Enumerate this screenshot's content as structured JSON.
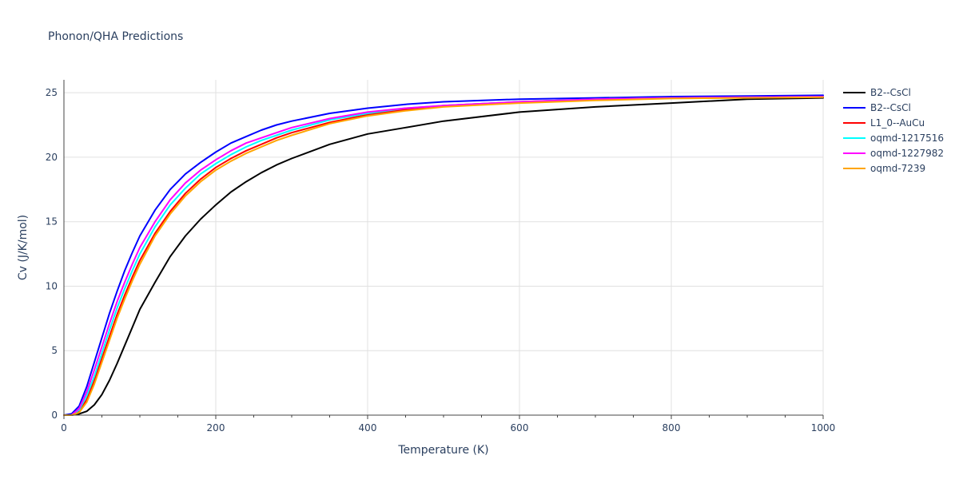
{
  "chart_data": {
    "type": "line",
    "title": "Phonon/QHA Predictions",
    "xlabel": "Temperature (K)",
    "ylabel": "Cv (J/K/mol)",
    "xlim": [
      0,
      1000
    ],
    "ylim": [
      0,
      26
    ],
    "xticks": [
      0,
      200,
      400,
      600,
      800,
      1000
    ],
    "yticks": [
      0,
      5,
      10,
      15,
      20,
      25
    ],
    "grid": true,
    "legend_position": "right",
    "series": [
      {
        "name": "B2--CsCl",
        "color": "#000000",
        "x": [
          0,
          10,
          20,
          30,
          40,
          50,
          60,
          70,
          80,
          90,
          100,
          120,
          140,
          160,
          180,
          200,
          220,
          240,
          260,
          280,
          300,
          350,
          400,
          450,
          500,
          600,
          700,
          800,
          900,
          1000
        ],
        "y": [
          0,
          0,
          0.1,
          0.3,
          0.8,
          1.6,
          2.7,
          4.0,
          5.4,
          6.8,
          8.2,
          10.3,
          12.3,
          13.9,
          15.2,
          16.3,
          17.3,
          18.1,
          18.8,
          19.4,
          19.9,
          21.0,
          21.8,
          22.3,
          22.8,
          23.5,
          23.9,
          24.2,
          24.5,
          24.6
        ]
      },
      {
        "name": "B2--CsCl",
        "color": "#0000ff",
        "x": [
          0,
          10,
          20,
          30,
          40,
          50,
          60,
          70,
          80,
          90,
          100,
          120,
          140,
          160,
          180,
          200,
          220,
          240,
          260,
          280,
          300,
          350,
          400,
          450,
          500,
          600,
          700,
          800,
          900,
          1000
        ],
        "y": [
          0,
          0.1,
          0.7,
          2.2,
          4.1,
          6.0,
          7.9,
          9.6,
          11.2,
          12.6,
          13.9,
          15.9,
          17.5,
          18.7,
          19.6,
          20.4,
          21.1,
          21.6,
          22.1,
          22.5,
          22.8,
          23.4,
          23.8,
          24.1,
          24.3,
          24.5,
          24.6,
          24.7,
          24.75,
          24.8
        ]
      },
      {
        "name": "L1_0--AuCu",
        "color": "#ff0000",
        "x": [
          0,
          10,
          20,
          30,
          40,
          50,
          60,
          70,
          80,
          90,
          100,
          120,
          140,
          160,
          180,
          200,
          220,
          240,
          260,
          280,
          300,
          350,
          400,
          450,
          500,
          600,
          700,
          800,
          900,
          1000
        ],
        "y": [
          0,
          0,
          0.3,
          1.2,
          2.7,
          4.4,
          6.1,
          7.8,
          9.3,
          10.7,
          12.0,
          14.1,
          15.8,
          17.2,
          18.3,
          19.2,
          19.9,
          20.5,
          21.0,
          21.5,
          21.9,
          22.7,
          23.3,
          23.7,
          24.0,
          24.3,
          24.5,
          24.6,
          24.65,
          24.7
        ]
      },
      {
        "name": "oqmd-1217516",
        "color": "#00ffff",
        "x": [
          0,
          10,
          20,
          30,
          40,
          50,
          60,
          70,
          80,
          90,
          100,
          120,
          140,
          160,
          180,
          200,
          220,
          240,
          260,
          280,
          300,
          350,
          400,
          450,
          500,
          600,
          700,
          800,
          900,
          1000
        ],
        "y": [
          0,
          0,
          0.4,
          1.5,
          3.0,
          4.8,
          6.6,
          8.3,
          9.8,
          11.2,
          12.5,
          14.6,
          16.3,
          17.6,
          18.7,
          19.5,
          20.2,
          20.8,
          21.3,
          21.7,
          22.1,
          22.9,
          23.4,
          23.8,
          24.0,
          24.3,
          24.5,
          24.6,
          24.65,
          24.7
        ]
      },
      {
        "name": "oqmd-1227982",
        "color": "#ff00ff",
        "x": [
          0,
          10,
          20,
          30,
          40,
          50,
          60,
          70,
          80,
          90,
          100,
          120,
          140,
          160,
          180,
          200,
          220,
          240,
          260,
          280,
          300,
          350,
          400,
          450,
          500,
          600,
          700,
          800,
          900,
          1000
        ],
        "y": [
          0,
          0,
          0.5,
          1.8,
          3.5,
          5.3,
          7.1,
          8.8,
          10.3,
          11.7,
          13.0,
          15.0,
          16.7,
          18.0,
          19.0,
          19.8,
          20.5,
          21.1,
          21.5,
          21.9,
          22.3,
          23.0,
          23.5,
          23.8,
          24.0,
          24.3,
          24.5,
          24.6,
          24.65,
          24.7
        ]
      },
      {
        "name": "oqmd-7239",
        "color": "#ffa500",
        "x": [
          0,
          10,
          20,
          30,
          40,
          50,
          60,
          70,
          80,
          90,
          100,
          120,
          140,
          160,
          180,
          200,
          220,
          240,
          260,
          280,
          300,
          350,
          400,
          450,
          500,
          600,
          700,
          800,
          900,
          1000
        ],
        "y": [
          0,
          0,
          0.2,
          1.0,
          2.4,
          4.1,
          5.8,
          7.5,
          9.0,
          10.4,
          11.7,
          13.9,
          15.6,
          17.0,
          18.1,
          19.0,
          19.7,
          20.3,
          20.8,
          21.3,
          21.7,
          22.6,
          23.2,
          23.6,
          23.9,
          24.2,
          24.4,
          24.55,
          24.6,
          24.65
        ]
      }
    ]
  }
}
